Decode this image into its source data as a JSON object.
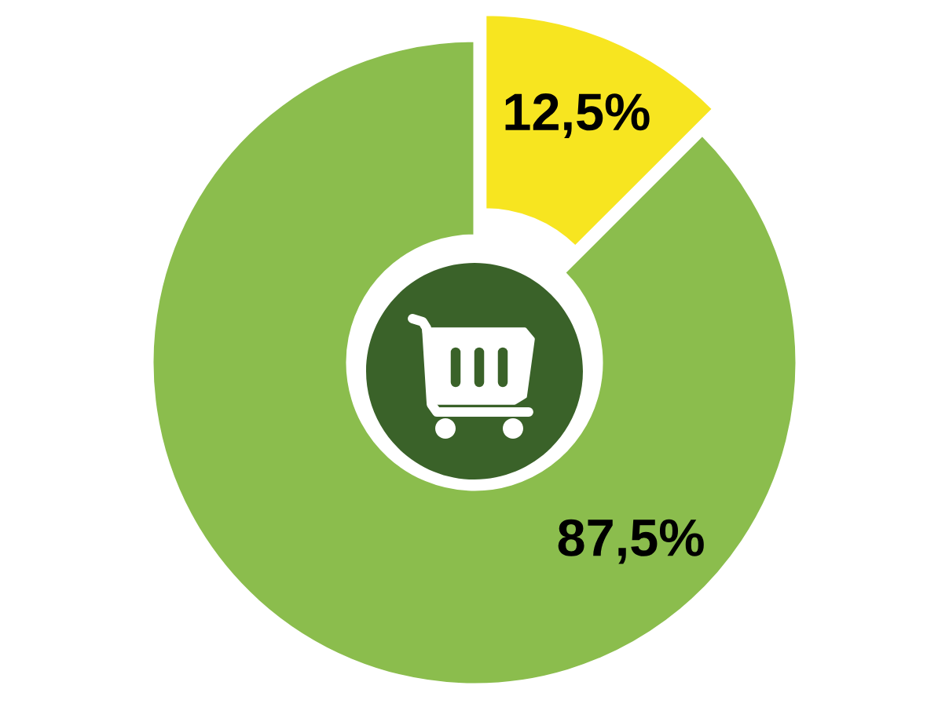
{
  "chart_data": {
    "type": "donut",
    "categories": [
      null,
      null
    ],
    "values": [
      12.5,
      87.5
    ],
    "colors": [
      "#f7e520",
      "#8bbd4d"
    ],
    "value_labels": [
      "12,5%",
      "87,5%"
    ]
  }
}
